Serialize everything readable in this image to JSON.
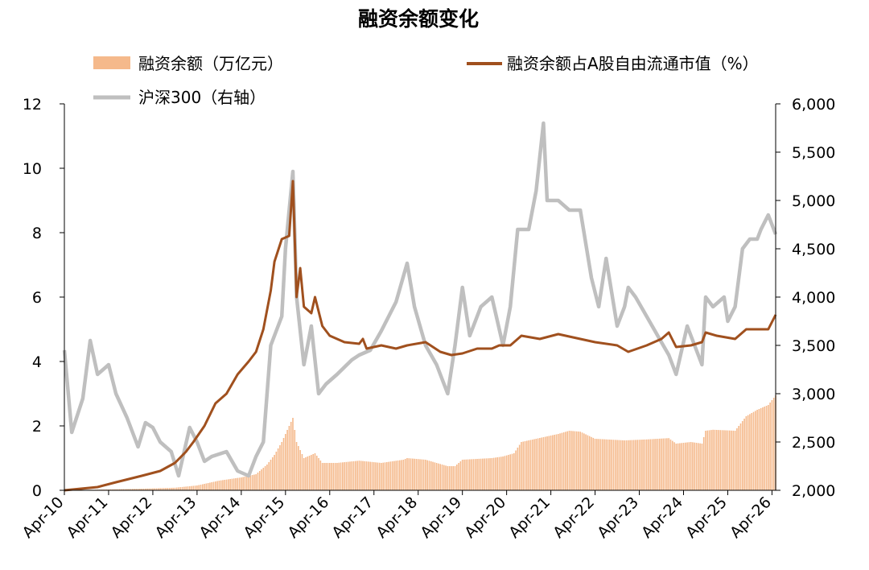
{
  "chart_data": {
    "type": "line",
    "title": "融资余额变化",
    "xlabel": "",
    "ylabel_left": "",
    "ylabel_right": "",
    "x_range": [
      "2010-04",
      "2026-05"
    ],
    "x_tick_labels": [
      "Apr-10",
      "Apr-11",
      "Apr-12",
      "Apr-13",
      "Apr-14",
      "Apr-15",
      "Apr-16",
      "Apr-17",
      "Apr-18",
      "Apr-19",
      "Apr-20",
      "Apr-21",
      "Apr-22",
      "Apr-23",
      "Apr-24",
      "Apr-25",
      "Apr-26"
    ],
    "y_left": {
      "ylim": [
        0,
        12
      ],
      "ticks": [
        "0",
        "2",
        "4",
        "6",
        "8",
        "10",
        "12"
      ]
    },
    "y_right": {
      "ylim": [
        2000,
        6000
      ],
      "ticks": [
        "2,000",
        "2,500",
        "3,000",
        "3,500",
        "4,000",
        "4,500",
        "5,000",
        "5,500",
        "6,000"
      ]
    },
    "grid": false,
    "legend_position": "top",
    "series": [
      {
        "name": "融资余额（万亿元）",
        "kind": "bar",
        "axis": "left",
        "color": "#F5B98B",
        "points": [
          [
            "2010-04",
            0.0
          ],
          [
            "2011-01",
            0.02
          ],
          [
            "2012-01",
            0.05
          ],
          [
            "2012-10",
            0.08
          ],
          [
            "2013-04",
            0.15
          ],
          [
            "2013-10",
            0.3
          ],
          [
            "2014-04",
            0.4
          ],
          [
            "2014-08",
            0.5
          ],
          [
            "2014-11",
            0.8
          ],
          [
            "2015-01",
            1.1
          ],
          [
            "2015-03",
            1.5
          ],
          [
            "2015-05",
            2.0
          ],
          [
            "2015-06",
            2.25
          ],
          [
            "2015-07",
            1.5
          ],
          [
            "2015-09",
            1.0
          ],
          [
            "2015-12",
            1.15
          ],
          [
            "2016-02",
            0.85
          ],
          [
            "2016-06",
            0.85
          ],
          [
            "2016-12",
            0.92
          ],
          [
            "2017-06",
            0.85
          ],
          [
            "2017-12",
            0.95
          ],
          [
            "2018-01",
            1.0
          ],
          [
            "2018-06",
            0.95
          ],
          [
            "2018-12",
            0.75
          ],
          [
            "2019-02",
            0.75
          ],
          [
            "2019-04",
            0.95
          ],
          [
            "2019-12",
            1.0
          ],
          [
            "2020-03",
            1.05
          ],
          [
            "2020-06",
            1.15
          ],
          [
            "2020-08",
            1.5
          ],
          [
            "2020-12",
            1.6
          ],
          [
            "2021-06",
            1.75
          ],
          [
            "2021-09",
            1.85
          ],
          [
            "2021-12",
            1.82
          ],
          [
            "2022-04",
            1.6
          ],
          [
            "2022-12",
            1.55
          ],
          [
            "2023-06",
            1.58
          ],
          [
            "2023-12",
            1.62
          ],
          [
            "2024-02",
            1.45
          ],
          [
            "2024-06",
            1.5
          ],
          [
            "2024-09",
            1.45
          ],
          [
            "2024-10",
            1.85
          ],
          [
            "2024-12",
            1.88
          ],
          [
            "2025-06",
            1.85
          ],
          [
            "2025-09",
            2.3
          ],
          [
            "2025-12",
            2.5
          ],
          [
            "2026-03",
            2.65
          ],
          [
            "2026-05",
            2.95
          ]
        ]
      },
      {
        "name": "融资余额占A股自由流通市值（%）",
        "kind": "line",
        "axis": "left",
        "color": "#A0501E",
        "points": [
          [
            "2010-04",
            0.0
          ],
          [
            "2011-01",
            0.1
          ],
          [
            "2011-06",
            0.25
          ],
          [
            "2012-01",
            0.45
          ],
          [
            "2012-06",
            0.6
          ],
          [
            "2012-10",
            0.85
          ],
          [
            "2013-01",
            1.2
          ],
          [
            "2013-03",
            1.5
          ],
          [
            "2013-06",
            2.0
          ],
          [
            "2013-09",
            2.7
          ],
          [
            "2013-12",
            3.0
          ],
          [
            "2014-03",
            3.6
          ],
          [
            "2014-06",
            4.0
          ],
          [
            "2014-08",
            4.3
          ],
          [
            "2014-10",
            5.0
          ],
          [
            "2014-12",
            6.2
          ],
          [
            "2015-01",
            7.1
          ],
          [
            "2015-03",
            7.8
          ],
          [
            "2015-05",
            7.9
          ],
          [
            "2015-06",
            9.6
          ],
          [
            "2015-07",
            6.0
          ],
          [
            "2015-08",
            6.9
          ],
          [
            "2015-09",
            5.7
          ],
          [
            "2015-11",
            5.5
          ],
          [
            "2015-12",
            6.0
          ],
          [
            "2016-02",
            5.1
          ],
          [
            "2016-04",
            4.8
          ],
          [
            "2016-08",
            4.6
          ],
          [
            "2016-12",
            4.55
          ],
          [
            "2017-01",
            4.7
          ],
          [
            "2017-02",
            4.4
          ],
          [
            "2017-06",
            4.5
          ],
          [
            "2017-10",
            4.4
          ],
          [
            "2018-01",
            4.5
          ],
          [
            "2018-06",
            4.6
          ],
          [
            "2018-10",
            4.3
          ],
          [
            "2019-01",
            4.2
          ],
          [
            "2019-04",
            4.25
          ],
          [
            "2019-08",
            4.4
          ],
          [
            "2019-12",
            4.4
          ],
          [
            "2020-02",
            4.5
          ],
          [
            "2020-05",
            4.5
          ],
          [
            "2020-08",
            4.8
          ],
          [
            "2021-01",
            4.7
          ],
          [
            "2021-06",
            4.85
          ],
          [
            "2021-12",
            4.7
          ],
          [
            "2022-04",
            4.6
          ],
          [
            "2022-10",
            4.5
          ],
          [
            "2023-01",
            4.3
          ],
          [
            "2023-06",
            4.5
          ],
          [
            "2023-10",
            4.7
          ],
          [
            "2023-12",
            4.9
          ],
          [
            "2024-02",
            4.45
          ],
          [
            "2024-06",
            4.5
          ],
          [
            "2024-09",
            4.6
          ],
          [
            "2024-10",
            4.9
          ],
          [
            "2025-01",
            4.8
          ],
          [
            "2025-06",
            4.7
          ],
          [
            "2025-09",
            5.0
          ],
          [
            "2025-12",
            5.0
          ],
          [
            "2026-03",
            5.0
          ],
          [
            "2026-05",
            5.45
          ]
        ]
      },
      {
        "name": "沪深300（右轴）",
        "kind": "line",
        "axis": "right",
        "color": "#BFBFBF",
        "points": [
          [
            "2010-04",
            3450
          ],
          [
            "2010-06",
            2600
          ],
          [
            "2010-09",
            2950
          ],
          [
            "2010-11",
            3550
          ],
          [
            "2011-01",
            3200
          ],
          [
            "2011-04",
            3300
          ],
          [
            "2011-06",
            3000
          ],
          [
            "2011-09",
            2750
          ],
          [
            "2011-12",
            2450
          ],
          [
            "2012-02",
            2700
          ],
          [
            "2012-04",
            2650
          ],
          [
            "2012-06",
            2500
          ],
          [
            "2012-09",
            2400
          ],
          [
            "2012-11",
            2150
          ],
          [
            "2013-02",
            2650
          ],
          [
            "2013-04",
            2500
          ],
          [
            "2013-06",
            2300
          ],
          [
            "2013-08",
            2350
          ],
          [
            "2013-12",
            2400
          ],
          [
            "2014-03",
            2200
          ],
          [
            "2014-06",
            2150
          ],
          [
            "2014-08",
            2350
          ],
          [
            "2014-10",
            2500
          ],
          [
            "2014-12",
            3500
          ],
          [
            "2015-03",
            3800
          ],
          [
            "2015-04",
            4500
          ],
          [
            "2015-06",
            5300
          ],
          [
            "2015-07",
            4000
          ],
          [
            "2015-09",
            3300
          ],
          [
            "2015-11",
            3700
          ],
          [
            "2016-01",
            3000
          ],
          [
            "2016-03",
            3100
          ],
          [
            "2016-06",
            3200
          ],
          [
            "2016-10",
            3350
          ],
          [
            "2016-12",
            3400
          ],
          [
            "2017-03",
            3450
          ],
          [
            "2017-06",
            3650
          ],
          [
            "2017-10",
            3950
          ],
          [
            "2018-01",
            4350
          ],
          [
            "2018-03",
            3900
          ],
          [
            "2018-06",
            3500
          ],
          [
            "2018-09",
            3300
          ],
          [
            "2018-12",
            3000
          ],
          [
            "2019-02",
            3500
          ],
          [
            "2019-04",
            4100
          ],
          [
            "2019-06",
            3600
          ],
          [
            "2019-09",
            3900
          ],
          [
            "2019-12",
            4000
          ],
          [
            "2020-03",
            3500
          ],
          [
            "2020-05",
            3900
          ],
          [
            "2020-07",
            4700
          ],
          [
            "2020-10",
            4700
          ],
          [
            "2020-12",
            5100
          ],
          [
            "2021-02",
            5800
          ],
          [
            "2021-03",
            5000
          ],
          [
            "2021-06",
            5000
          ],
          [
            "2021-09",
            4900
          ],
          [
            "2021-12",
            4900
          ],
          [
            "2022-03",
            4200
          ],
          [
            "2022-05",
            3900
          ],
          [
            "2022-07",
            4400
          ],
          [
            "2022-10",
            3700
          ],
          [
            "2022-12",
            3900
          ],
          [
            "2023-01",
            4100
          ],
          [
            "2023-03",
            4000
          ],
          [
            "2023-06",
            3800
          ],
          [
            "2023-09",
            3600
          ],
          [
            "2023-12",
            3400
          ],
          [
            "2024-02",
            3200
          ],
          [
            "2024-05",
            3700
          ],
          [
            "2024-09",
            3300
          ],
          [
            "2024-10",
            4000
          ],
          [
            "2024-12",
            3900
          ],
          [
            "2025-03",
            4000
          ],
          [
            "2025-04",
            3750
          ],
          [
            "2025-06",
            3900
          ],
          [
            "2025-08",
            4500
          ],
          [
            "2025-10",
            4600
          ],
          [
            "2025-12",
            4600
          ],
          [
            "2026-01",
            4700
          ],
          [
            "2026-03",
            4850
          ],
          [
            "2026-05",
            4650
          ]
        ]
      }
    ]
  }
}
